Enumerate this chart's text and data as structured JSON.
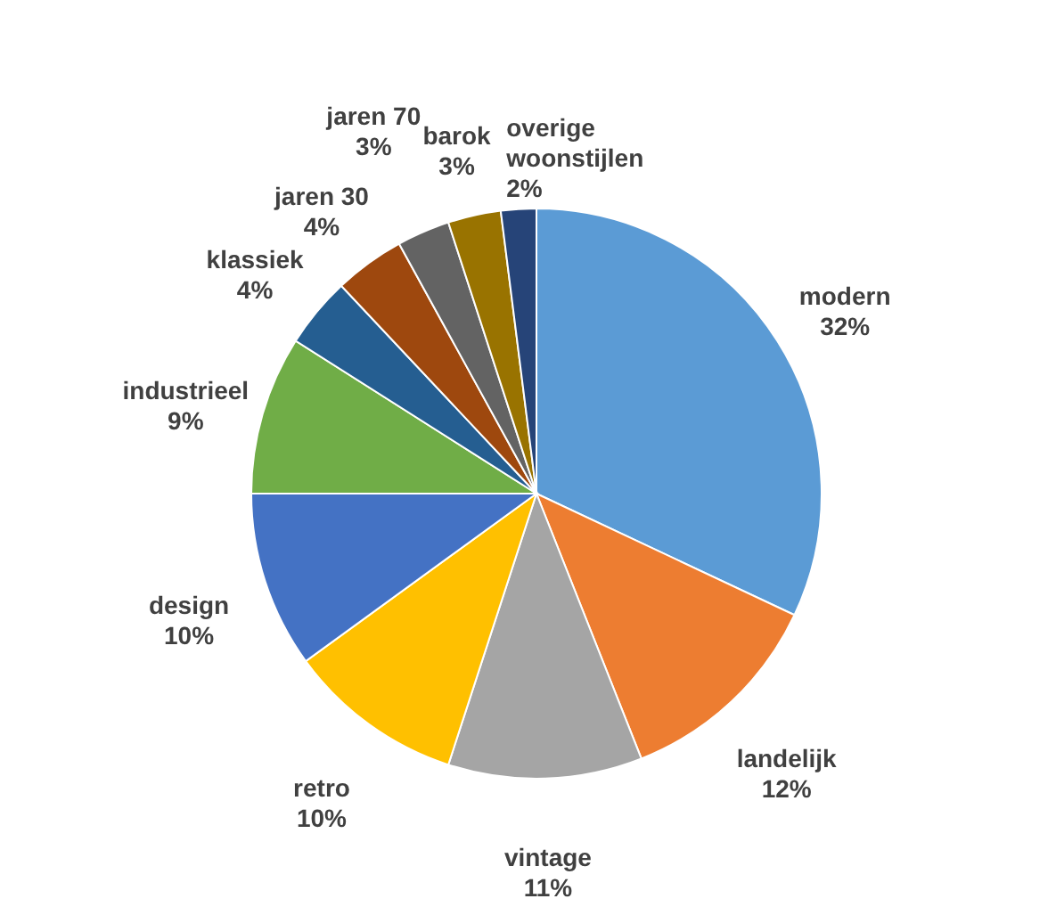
{
  "chart_data": {
    "type": "pie",
    "categories": [
      "modern",
      "landelijk",
      "vintage",
      "retro",
      "design",
      "industrieel",
      "klassiek",
      "jaren 30",
      "jaren 70",
      "barok",
      "overige woonstijlen"
    ],
    "values": [
      32,
      12,
      11,
      10,
      10,
      9,
      4,
      4,
      3,
      3,
      2
    ],
    "value_labels": [
      "32%",
      "12%",
      "11%",
      "10%",
      "10%",
      "9%",
      "4%",
      "4%",
      "3%",
      "3%",
      "2%"
    ],
    "colors": [
      "#5b9bd5",
      "#ed7d31",
      "#a5a5a5",
      "#ffc000",
      "#4472c4",
      "#70ad47",
      "#255e91",
      "#9e480e",
      "#636363",
      "#997300",
      "#264478"
    ]
  }
}
